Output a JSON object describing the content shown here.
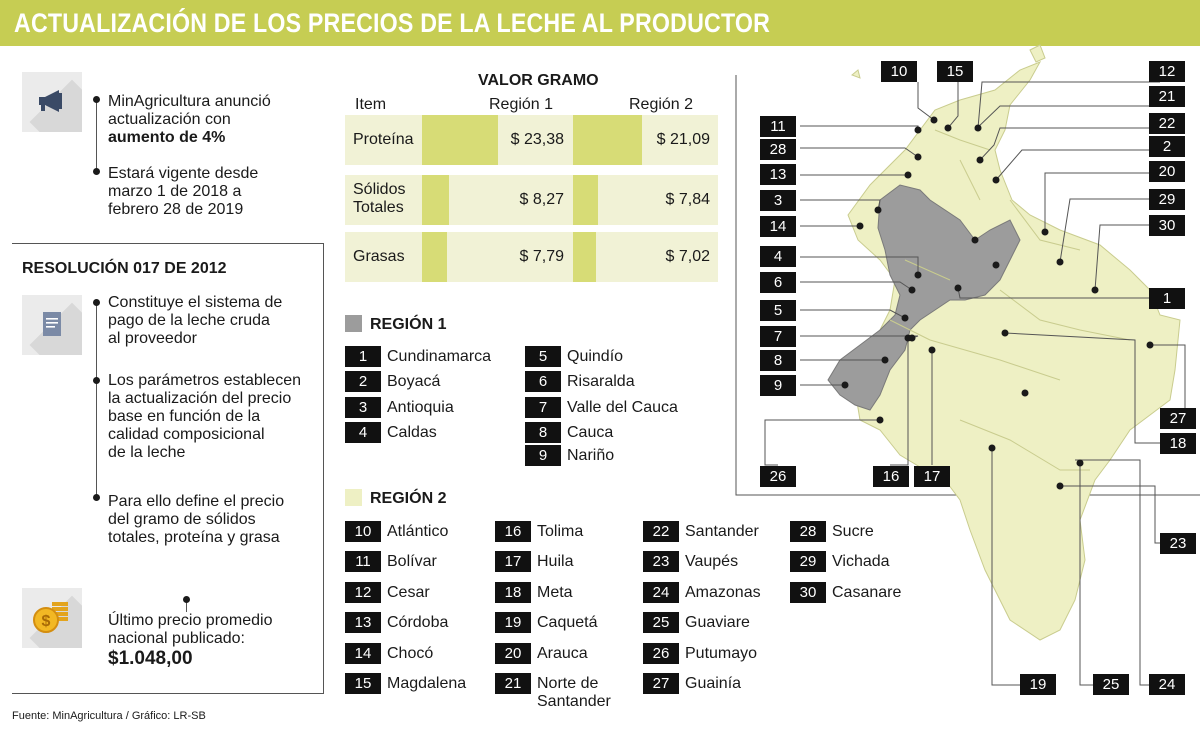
{
  "title": "ACTUALIZACIÓN DE LOS PRECIOS DE LA LECHE AL PRODUCTOR",
  "announcement": {
    "icon": "megaphone-icon",
    "line1": "MinAgricultura anunció",
    "line2": "actualización con",
    "line3_bold": "aumento de 4%",
    "vigente_1": "Estará vigente desde",
    "vigente_2": "marzo 1 de 2018 a",
    "vigente_3": "febrero 28 de 2019"
  },
  "resolution": {
    "title": "RESOLUCIÓN 017 DE 2012",
    "icon": "document-icon",
    "p1": [
      "Constituye el sistema de",
      "pago de la leche cruda",
      "al proveedor"
    ],
    "p2": [
      "Los parámetros establecen",
      "la actualización del precio",
      "base en función de la",
      "calidad composicional",
      "de la leche"
    ],
    "p3": [
      "Para ello define el precio",
      "del gramo de sólidos",
      "totales, proteína y grasa"
    ]
  },
  "price": {
    "icon": "coins-icon",
    "line1": "Último precio promedio",
    "line2": "nacional publicado:",
    "value": "$1.048,00"
  },
  "table": {
    "title": "VALOR GRAMO",
    "col_item": "Item",
    "col_r1": "Región 1",
    "col_r2": "Región 2",
    "rows": [
      {
        "item": "Proteína",
        "r1": "$ 23,38",
        "r2": "$ 21,09",
        "r1_num": 23.38,
        "r2_num": 21.09
      },
      {
        "item_1": "Sólidos",
        "item_2": "Totales",
        "r1": "$ 8,27",
        "r2": "$ 7,84",
        "r1_num": 8.27,
        "r2_num": 7.84
      },
      {
        "item": "Grasas",
        "r1": "$ 7,79",
        "r2": "$ 7,02",
        "r1_num": 7.79,
        "r2_num": 7.02
      }
    ]
  },
  "region1": {
    "label": "REGIÓN 1",
    "color": "#9c9c9c",
    "items": [
      {
        "n": "1",
        "name": "Cundinamarca"
      },
      {
        "n": "2",
        "name": "Boyacá"
      },
      {
        "n": "3",
        "name": "Antioquia"
      },
      {
        "n": "4",
        "name": "Caldas"
      },
      {
        "n": "5",
        "name": "Quindío"
      },
      {
        "n": "6",
        "name": "Risaralda"
      },
      {
        "n": "7",
        "name": "Valle del Cauca"
      },
      {
        "n": "8",
        "name": "Cauca"
      },
      {
        "n": "9",
        "name": "Nariño"
      }
    ]
  },
  "region2": {
    "label": "REGIÓN 2",
    "color": "#eef0c4",
    "items": [
      {
        "n": "10",
        "name": "Atlántico"
      },
      {
        "n": "11",
        "name": "Bolívar"
      },
      {
        "n": "12",
        "name": "Cesar"
      },
      {
        "n": "13",
        "name": "Córdoba"
      },
      {
        "n": "14",
        "name": "Chocó"
      },
      {
        "n": "15",
        "name": "Magdalena"
      },
      {
        "n": "16",
        "name": "Tolima"
      },
      {
        "n": "17",
        "name": "Huila"
      },
      {
        "n": "18",
        "name": "Meta"
      },
      {
        "n": "19",
        "name": "Caquetá"
      },
      {
        "n": "20",
        "name": "Arauca"
      },
      {
        "n": "21",
        "name_1": "Norte de",
        "name_2": "Santander"
      },
      {
        "n": "22",
        "name": "Santander"
      },
      {
        "n": "23",
        "name": "Vaupés"
      },
      {
        "n": "24",
        "name": "Amazonas"
      },
      {
        "n": "25",
        "name": "Guaviare"
      },
      {
        "n": "26",
        "name": "Putumayo"
      },
      {
        "n": "27",
        "name": "Guainía"
      },
      {
        "n": "28",
        "name": "Sucre"
      },
      {
        "n": "29",
        "name": "Vichada"
      },
      {
        "n": "30",
        "name": "Casanare"
      }
    ]
  },
  "map_labels": [
    "10",
    "15",
    "12",
    "21",
    "11",
    "22",
    "28",
    "2",
    "13",
    "20",
    "3",
    "29",
    "14",
    "30",
    "4",
    "6",
    "1",
    "5",
    "7",
    "8",
    "9",
    "27",
    "18",
    "26",
    "16",
    "17",
    "23",
    "19",
    "25",
    "24"
  ],
  "colors": {
    "banner": "#c6cd53",
    "row_bg": "#f1f2d6",
    "bar": "#d7dc76",
    "region1": "#9c9c9c",
    "region2": "#eef0c4"
  },
  "footer": "Fuente: MinAgricultura / Gráfico: LR-SB"
}
